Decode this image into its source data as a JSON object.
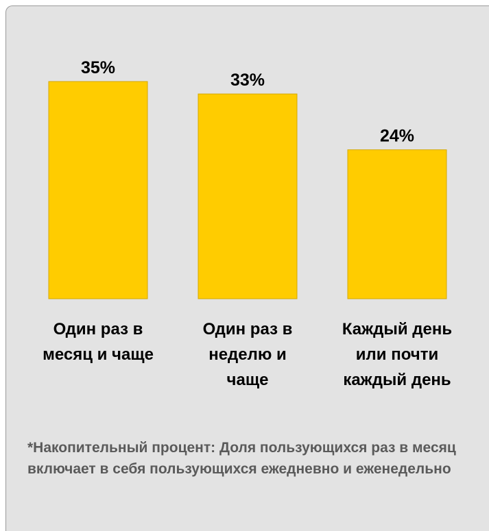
{
  "chart_data": {
    "type": "bar",
    "categories": [
      "Один раз в\nмесяц и чаще",
      "Один раз в\nнеделю и\nчаще",
      "Каждый день\nили почти\nкаждый день"
    ],
    "values": [
      35,
      33,
      24
    ],
    "value_labels": [
      "35%",
      "33%",
      "24%"
    ],
    "title": "",
    "xlabel": "",
    "ylabel": "",
    "ylim": [
      0,
      35
    ],
    "grid": false,
    "bar_color": "#FFCC00",
    "bar_edge_color": "#D4A800"
  },
  "footnote": "*Накопительный процент: Доля пользующихся раз в месяц включает в себя пользующихся ежедневно и еженедельно",
  "colors": {
    "background": "#E3E3E3",
    "footnote_text": "#5A5A5A"
  }
}
